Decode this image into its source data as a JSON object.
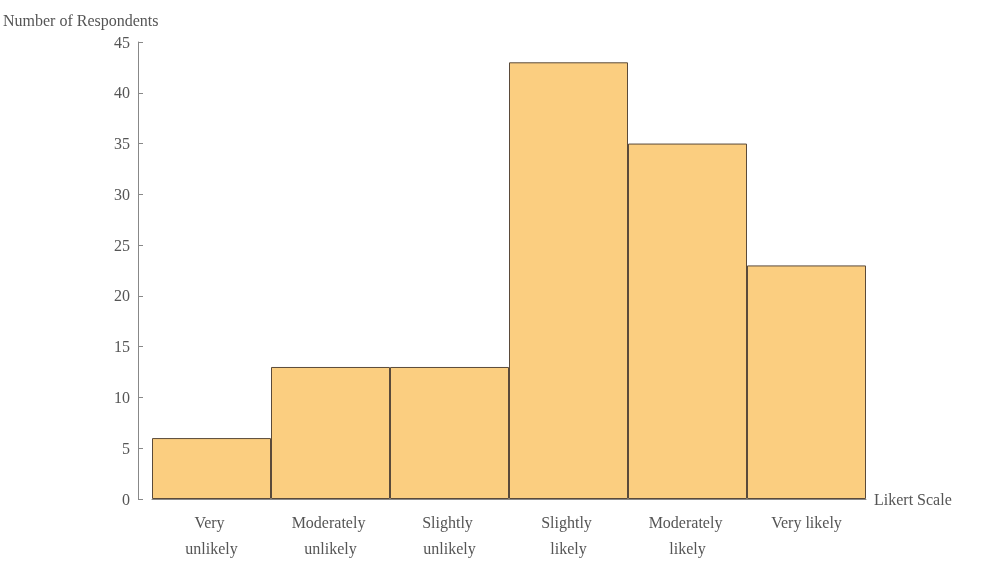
{
  "chart_data": {
    "type": "bar",
    "xlabel": "Likert Scale",
    "ylabel": "Number of Respondents",
    "categories": [
      "Very unlikely",
      "Moderately unlikely",
      "Slightly unlikely",
      "Slightly likely",
      "Moderately likely",
      "Very likely"
    ],
    "values": [
      6,
      13,
      13,
      43,
      35,
      23
    ],
    "color": "#fbce80",
    "ylim": [
      0,
      45
    ],
    "yticks": [
      0,
      5,
      10,
      15,
      20,
      25,
      30,
      35,
      40,
      45
    ],
    "grid": false
  }
}
